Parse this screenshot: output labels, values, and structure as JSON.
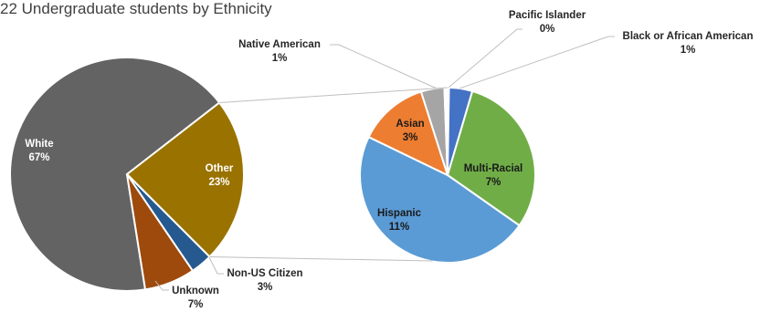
{
  "chart_data": {
    "type": "pie",
    "title": "22 Undergraduate students by Ethnicity",
    "primary": {
      "slices": [
        {
          "name": "White",
          "value": 67,
          "label": "67%",
          "color": "#636363",
          "label_color": "#ffffff"
        },
        {
          "name": "Other",
          "value": 23,
          "label": "23%",
          "color": "#9a7200",
          "label_color": "#ffffff"
        },
        {
          "name": "Non-US Citizen",
          "value": 3,
          "label": "3%",
          "color": "#25598f",
          "label_color": "#262626"
        },
        {
          "name": "Unknown",
          "value": 7,
          "label": "7%",
          "color": "#9e4a0d",
          "label_color": "#262626"
        }
      ]
    },
    "secondary": {
      "slices": [
        {
          "name": "Black or African American",
          "value": 1,
          "label": "1%",
          "color": "#4472c4",
          "label_color": "#262626"
        },
        {
          "name": "Multi-Racial",
          "value": 7,
          "label": "7%",
          "color": "#70ad47",
          "label_color": "#1a1a1a"
        },
        {
          "name": "Hispanic",
          "value": 11,
          "label": "11%",
          "color": "#5b9bd5",
          "label_color": "#1a1a1a"
        },
        {
          "name": "Asian",
          "value": 3,
          "label": "3%",
          "color": "#ed7d31",
          "label_color": "#1a1a1a"
        },
        {
          "name": "Native American",
          "value": 1,
          "label": "1%",
          "color": "#a5a5a5",
          "label_color": "#262626"
        },
        {
          "name": "Pacific Islander",
          "value": 0,
          "label": "0%",
          "color": "#ffc000",
          "label_color": "#262626"
        }
      ]
    },
    "connector_color": "#bfbfbf"
  }
}
